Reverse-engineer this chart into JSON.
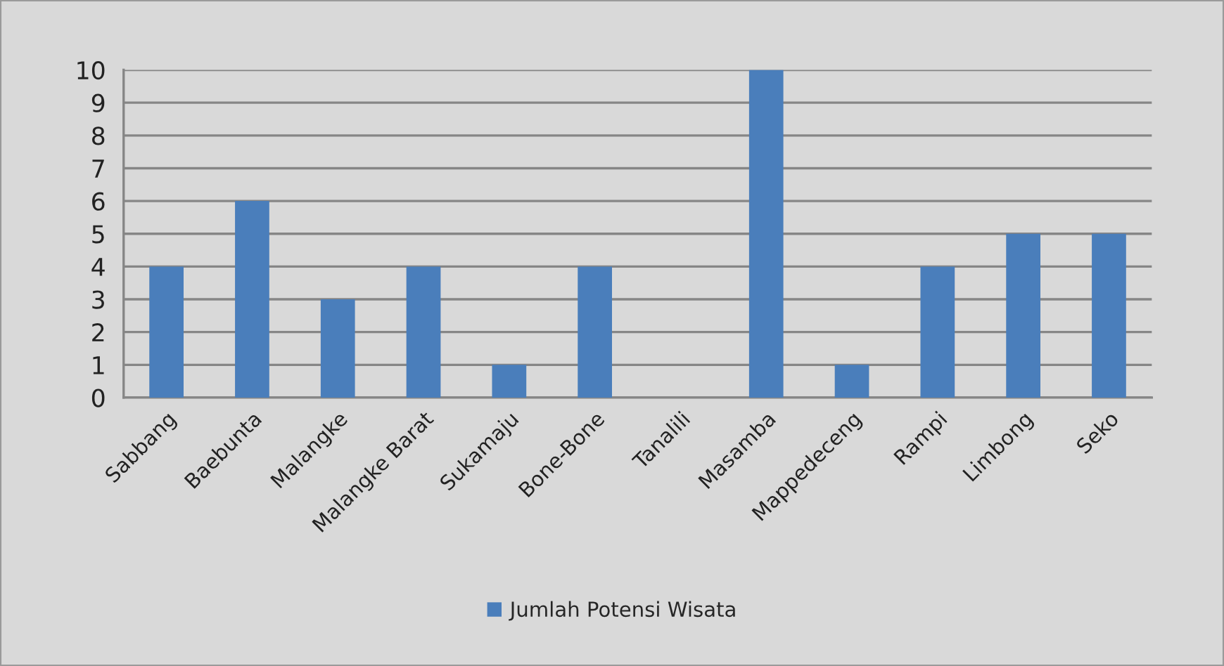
{
  "chart_data": {
    "type": "bar",
    "categories": [
      "Sabbang",
      "Baebunta",
      "Malangke",
      "Malangke Barat",
      "Sukamaju",
      "Bone-Bone",
      "Tanalili",
      "Masamba",
      "Mappedeceng",
      "Rampi",
      "Limbong",
      "Seko"
    ],
    "series": [
      {
        "name": "Jumlah Potensi Wisata",
        "color": "#4a7ebb",
        "values": [
          4,
          6,
          3,
          4,
          1,
          4,
          0,
          10,
          1,
          4,
          5,
          5
        ]
      }
    ],
    "ylim": [
      0,
      10
    ],
    "yticks": [
      0,
      1,
      2,
      3,
      4,
      5,
      6,
      7,
      8,
      9,
      10
    ],
    "grid": "y",
    "legend": "bottom"
  }
}
